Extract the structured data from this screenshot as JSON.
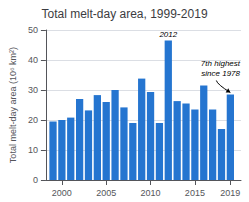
{
  "chart_data": {
    "type": "bar",
    "title": "Total melt-day area, 1999-2019",
    "ylabel": "Total melt-day area (10⁶ km²)",
    "x": [
      1999,
      2000,
      2001,
      2002,
      2003,
      2004,
      2005,
      2006,
      2007,
      2008,
      2009,
      2010,
      2011,
      2012,
      2013,
      2014,
      2015,
      2016,
      2017,
      2018,
      2019
    ],
    "values": [
      19.5,
      20.0,
      20.8,
      27.0,
      23.2,
      28.3,
      26.0,
      30.0,
      24.2,
      19.0,
      33.8,
      29.3,
      19.0,
      46.5,
      26.3,
      25.5,
      23.5,
      31.5,
      23.5,
      17.0,
      28.5
    ],
    "color": "#2575d0",
    "xlim": [
      1998.2,
      2020.2
    ],
    "xticks": [
      2000,
      2005,
      2010,
      2015,
      2019
    ],
    "ylim": [
      0,
      50
    ],
    "yticks": [
      0,
      10,
      20,
      30,
      40,
      50
    ],
    "grid": true,
    "annotations": [
      {
        "text": "2012",
        "x": 2012
      },
      {
        "text": "7th highest\nsince 1978",
        "x": 2019
      }
    ]
  }
}
